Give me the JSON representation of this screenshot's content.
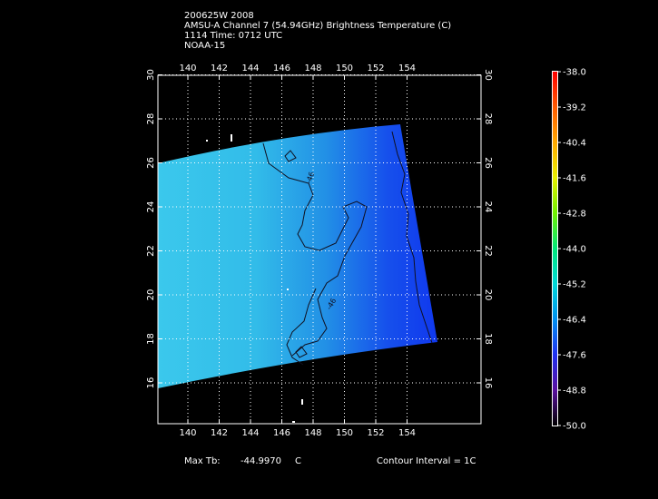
{
  "header": {
    "line1": "200625W 2008",
    "line2": "AMSU-A Channel 7 (54.94GHz) Brightness Temperature (C)",
    "line3": "1114 Time: 0712 UTC",
    "line4": "NOAA-15"
  },
  "axes": {
    "lon_ticks": [
      "140",
      "142",
      "144",
      "146",
      "148",
      "150",
      "152",
      "154"
    ],
    "lat_ticks": [
      "16",
      "18",
      "20",
      "22",
      "24",
      "26",
      "28",
      "30"
    ]
  },
  "colorbar": {
    "labels": [
      "-38.0",
      "-39.2",
      "-40.4",
      "-41.6",
      "-42.8",
      "-44.0",
      "-45.2",
      "-46.4",
      "-47.6",
      "-48.8",
      "-50.0"
    ]
  },
  "contours": {
    "label_a": "-46",
    "label_b": "-46"
  },
  "footer": {
    "max_label": "Max Tb:",
    "max_value": "-44.9970",
    "max_unit": "C",
    "contour_interval": "Contour Interval = 1C"
  },
  "colors": {
    "swath_light": "#38c4ea",
    "swath_mid": "#1f8ee8",
    "swath_dark": "#1540ee",
    "colorbar_top": "#ff0000",
    "colorbar_bottom": "#000000"
  }
}
